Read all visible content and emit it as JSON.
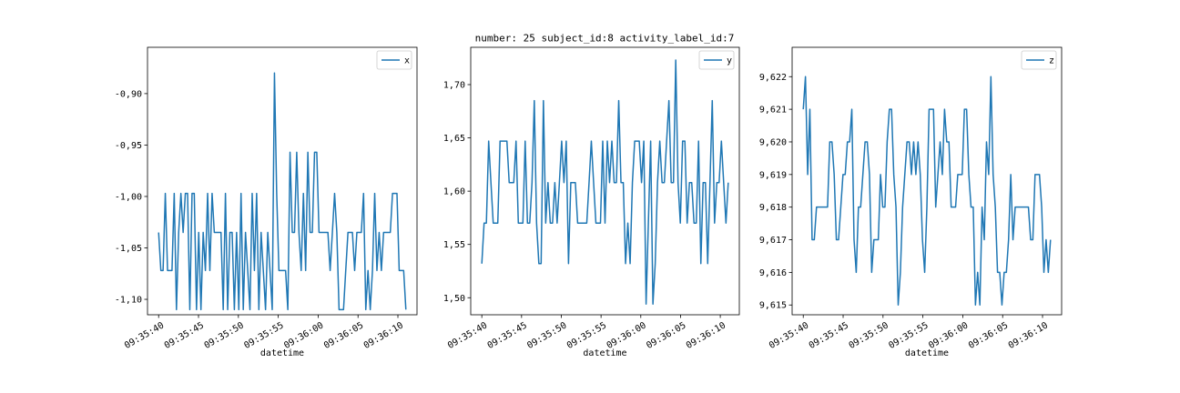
{
  "figure": {
    "title": "number: 25 subject_id:8 activity_label_id:7"
  },
  "chart_data": [
    {
      "type": "line",
      "xlabel": "datetime",
      "ylabel": "",
      "x_start": "09:35:40",
      "x_end": "09:36:11",
      "x_ticks": [
        "09:35:40",
        "09:35:45",
        "09:35:50",
        "09:35:55",
        "09:36:00",
        "09:36:05",
        "09:36:10"
      ],
      "y_ticks": [
        "-0,90",
        "-0,95",
        "-1,00",
        "-1,05",
        "-1,10"
      ],
      "y_tick_values": [
        -0.9,
        -0.95,
        -1.0,
        -1.05,
        -1.1
      ],
      "ylim": [
        -1.115,
        -0.855
      ],
      "legend": "upper right",
      "series": [
        {
          "name": "x",
          "color": "#1f77b4",
          "values": [
            -1.035,
            -1.072,
            -1.072,
            -0.997,
            -1.072,
            -1.072,
            -1.072,
            -0.997,
            -1.11,
            -1.035,
            -0.997,
            -1.035,
            -0.997,
            -0.997,
            -1.11,
            -0.997,
            -0.997,
            -1.11,
            -1.035,
            -1.11,
            -1.035,
            -1.072,
            -0.997,
            -1.072,
            -0.997,
            -1.035,
            -1.035,
            -1.035,
            -1.035,
            -1.11,
            -0.997,
            -1.11,
            -1.035,
            -1.035,
            -1.11,
            -1.035,
            -1.11,
            -0.997,
            -1.11,
            -1.035,
            -1.072,
            -1.11,
            -0.997,
            -1.072,
            -0.997,
            -1.11,
            -1.035,
            -1.072,
            -1.11,
            -1.035,
            -1.072,
            -1.11,
            -0.88,
            -0.997,
            -1.072,
            -1.072,
            -1.072,
            -1.072,
            -1.11,
            -0.957,
            -1.035,
            -1.035,
            -0.957,
            -1.035,
            -1.072,
            -0.997,
            -1.072,
            -0.957,
            -1.035,
            -1.035,
            -0.957,
            -0.957,
            -1.035,
            -1.035,
            -1.035,
            -1.035,
            -1.035,
            -1.072,
            -1.035,
            -0.997,
            -1.035,
            -1.11,
            -1.11,
            -1.11,
            -1.072,
            -1.035,
            -1.035,
            -1.035,
            -1.072,
            -1.035,
            -1.035,
            -1.035,
            -0.997,
            -1.11,
            -1.072,
            -1.11,
            -1.072,
            -0.997,
            -1.072,
            -1.035,
            -1.072,
            -1.035,
            -1.035,
            -1.035,
            -1.035,
            -0.997,
            -0.997,
            -0.997,
            -1.072,
            -1.072,
            -1.072,
            -1.11
          ]
        }
      ]
    },
    {
      "type": "line",
      "xlabel": "datetime",
      "ylabel": "",
      "x_start": "09:35:40",
      "x_end": "09:36:11",
      "x_ticks": [
        "09:35:40",
        "09:35:45",
        "09:35:50",
        "09:35:55",
        "09:36:00",
        "09:36:05",
        "09:36:10"
      ],
      "y_ticks": [
        "1,70",
        "1,65",
        "1,60",
        "1,55",
        "1,50"
      ],
      "y_tick_values": [
        1.7,
        1.65,
        1.6,
        1.55,
        1.5
      ],
      "ylim": [
        1.484,
        1.735
      ],
      "legend": "upper right",
      "series": [
        {
          "name": "y",
          "color": "#1f77b4",
          "values": [
            1.532,
            1.57,
            1.57,
            1.647,
            1.608,
            1.57,
            1.57,
            1.57,
            1.647,
            1.647,
            1.647,
            1.647,
            1.608,
            1.608,
            1.608,
            1.647,
            1.57,
            1.57,
            1.57,
            1.647,
            1.57,
            1.57,
            1.608,
            1.685,
            1.57,
            1.532,
            1.532,
            1.685,
            1.57,
            1.608,
            1.57,
            1.57,
            1.608,
            1.57,
            1.608,
            1.647,
            1.608,
            1.647,
            1.532,
            1.608,
            1.608,
            1.608,
            1.57,
            1.57,
            1.57,
            1.57,
            1.57,
            1.608,
            1.647,
            1.608,
            1.57,
            1.57,
            1.57,
            1.647,
            1.57,
            1.647,
            1.608,
            1.647,
            1.608,
            1.608,
            1.685,
            1.608,
            1.608,
            1.532,
            1.57,
            1.532,
            1.608,
            1.647,
            1.647,
            1.647,
            1.608,
            1.647,
            1.494,
            1.57,
            1.647,
            1.494,
            1.532,
            1.608,
            1.647,
            1.608,
            1.608,
            1.647,
            1.685,
            1.608,
            1.608,
            1.723,
            1.608,
            1.57,
            1.647,
            1.647,
            1.57,
            1.608,
            1.608,
            1.57,
            1.57,
            1.647,
            1.532,
            1.608,
            1.608,
            1.532,
            1.608,
            1.685,
            1.57,
            1.608,
            1.608,
            1.647,
            1.608,
            1.57,
            1.608
          ]
        }
      ]
    },
    {
      "type": "line",
      "xlabel": "datetime",
      "ylabel": "",
      "x_start": "09:35:40",
      "x_end": "09:36:11",
      "x_ticks": [
        "09:35:40",
        "09:35:45",
        "09:35:50",
        "09:35:55",
        "09:36:00",
        "09:36:05",
        "09:36:10"
      ],
      "y_ticks": [
        "9,622",
        "9,621",
        "9,620",
        "9,619",
        "9,618",
        "9,617",
        "9,616",
        "9,615"
      ],
      "y_tick_values": [
        9.622,
        9.621,
        9.62,
        9.619,
        9.618,
        9.617,
        9.616,
        9.615
      ],
      "ylim": [
        9.6147,
        9.6229
      ],
      "legend": "upper right",
      "series": [
        {
          "name": "z",
          "color": "#1f77b4",
          "values": [
            9.621,
            9.622,
            9.619,
            9.621,
            9.617,
            9.617,
            9.618,
            9.618,
            9.618,
            9.618,
            9.618,
            9.618,
            9.62,
            9.62,
            9.619,
            9.617,
            9.617,
            9.618,
            9.619,
            9.619,
            9.62,
            9.62,
            9.621,
            9.617,
            9.616,
            9.618,
            9.618,
            9.619,
            9.62,
            9.62,
            9.619,
            9.616,
            9.617,
            9.617,
            9.617,
            9.619,
            9.618,
            9.618,
            9.62,
            9.621,
            9.621,
            9.619,
            9.618,
            9.615,
            9.616,
            9.618,
            9.619,
            9.62,
            9.62,
            9.619,
            9.62,
            9.619,
            9.62,
            9.619,
            9.617,
            9.616,
            9.618,
            9.621,
            9.621,
            9.621,
            9.618,
            9.619,
            9.62,
            9.619,
            9.621,
            9.62,
            9.62,
            9.618,
            9.618,
            9.618,
            9.619,
            9.619,
            9.619,
            9.621,
            9.621,
            9.619,
            9.618,
            9.618,
            9.615,
            9.616,
            9.615,
            9.618,
            9.617,
            9.62,
            9.619,
            9.622,
            9.619,
            9.618,
            9.616,
            9.616,
            9.615,
            9.616,
            9.616,
            9.617,
            9.619,
            9.617,
            9.618,
            9.618,
            9.618,
            9.618,
            9.618,
            9.618,
            9.618,
            9.617,
            9.617,
            9.619,
            9.619,
            9.619,
            9.618,
            9.616,
            9.617,
            9.616,
            9.617
          ]
        }
      ]
    }
  ]
}
